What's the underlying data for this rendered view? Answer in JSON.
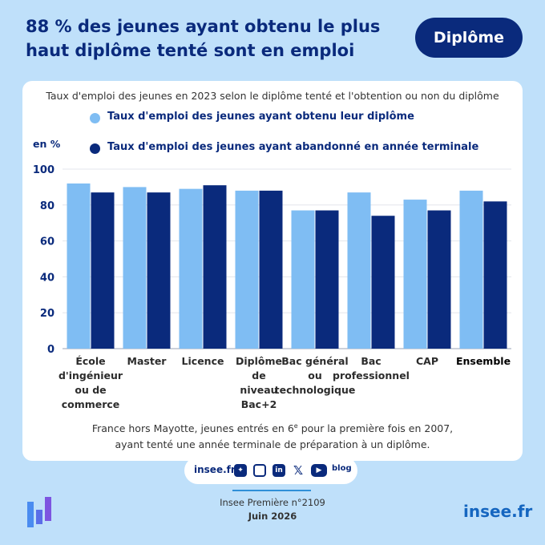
{
  "header": {
    "headline": "88 % des jeunes ayant obtenu le plus haut diplôme tenté sont en emploi",
    "tag": "Diplôme"
  },
  "colors": {
    "series1": "#7fbdf3",
    "series2": "#0a2a7c",
    "background": "#bfe0fa",
    "title": "#0a2a7c"
  },
  "chart_data": {
    "type": "bar",
    "title": "Taux d'emploi des jeunes en 2023 selon le diplôme tenté et l'obtention ou non du diplôme",
    "ylabel": "en %",
    "xlabel": "",
    "ylim": [
      0,
      100
    ],
    "yticks": [
      "0",
      "20",
      "40",
      "60",
      "80",
      "100"
    ],
    "yticks_values": [
      0,
      20,
      40,
      60,
      80,
      100
    ],
    "grid": true,
    "legend_position": "top",
    "categories": [
      [
        "École",
        "d'ingénieur",
        "ou de",
        "commerce"
      ],
      [
        "Master"
      ],
      [
        "Licence"
      ],
      [
        "Diplôme",
        "de",
        "niveau",
        "Bac+2"
      ],
      [
        "Bac général",
        "ou",
        "technologique"
      ],
      [
        "Bac",
        "professionnel"
      ],
      [
        "CAP"
      ],
      [
        "Ensemble"
      ]
    ],
    "bold_category_index": 7,
    "series": [
      {
        "name": "Taux d'emploi des jeunes ayant obtenu leur diplôme",
        "values": [
          92,
          90,
          89,
          88,
          77,
          87,
          83,
          88
        ]
      },
      {
        "name": "Taux d'emploi des jeunes ayant abandonné en année terminale",
        "values": [
          87,
          87,
          91,
          88,
          77,
          74,
          77,
          82
        ]
      }
    ]
  },
  "note": {
    "line1_pre": "France hors Mayotte, jeunes entrés en 6",
    "line1_sup": "e",
    "line1_post": " pour la première fois en 2007,",
    "line2": "ayant tenté une année terminale de préparation à un diplôme."
  },
  "social": {
    "site": "insee.fr",
    "icons": [
      "bluesky-icon",
      "instagram-icon",
      "linkedin-icon",
      "x-icon",
      "youtube-icon"
    ],
    "blog": "blog"
  },
  "footer": {
    "publication": "Insee Première n°2109",
    "date": "Juin 2026",
    "site": "insee.fr"
  }
}
